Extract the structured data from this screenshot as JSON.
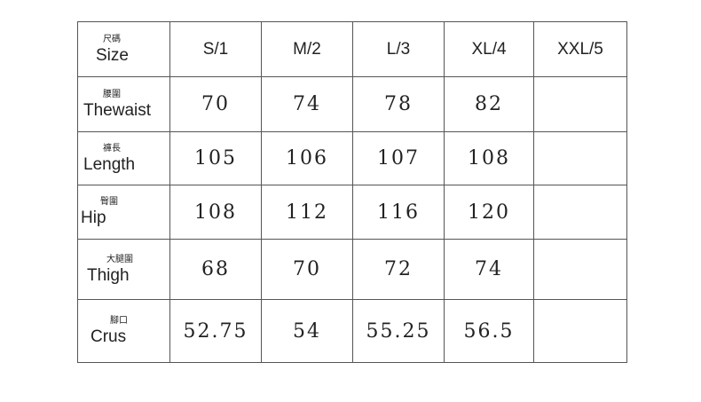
{
  "header": {
    "label_zh": "尺碼",
    "label_en": "Size",
    "sizes": [
      "S/1",
      "M/2",
      "L/3",
      "XL/4",
      "XXL/5"
    ]
  },
  "rows": [
    {
      "zh": "腰圍",
      "en": "Thewaist",
      "values": [
        "70",
        "74",
        "78",
        "82",
        ""
      ]
    },
    {
      "zh": "褲長",
      "en": "Length",
      "values": [
        "105",
        "106",
        "107",
        "108",
        ""
      ]
    },
    {
      "zh": "臀圍",
      "en": "Hip",
      "values": [
        "108",
        "112",
        "116",
        "120",
        ""
      ]
    },
    {
      "zh": "大腿圍",
      "en": "Thigh",
      "values": [
        "68",
        "70",
        "72",
        "74",
        ""
      ]
    },
    {
      "zh": "腳口",
      "en": "Crus",
      "values": [
        "52.75",
        "54",
        "55.25",
        "56.5",
        ""
      ]
    }
  ]
}
